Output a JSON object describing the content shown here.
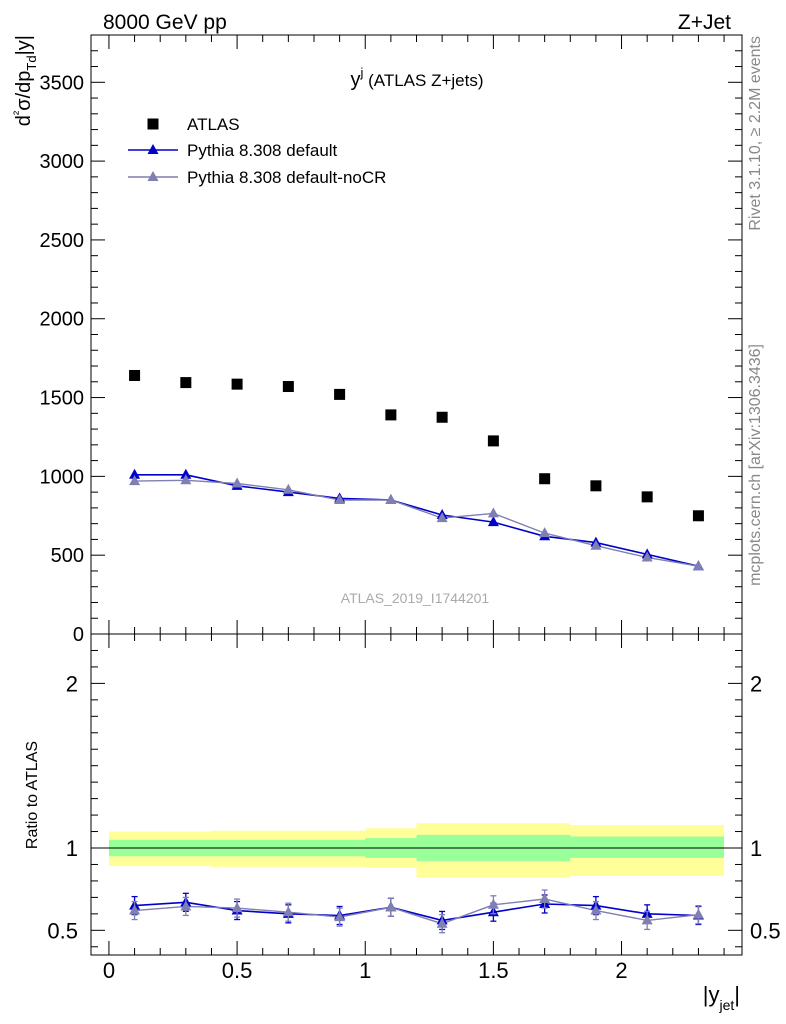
{
  "header": {
    "energy_label": "8000 GeV pp",
    "process_label": "Z+Jet"
  },
  "side_labels": {
    "rivet": "Rivet 3.1.10, ≥ 2.2M events",
    "mcplots": "mcplots.cern.ch [arXiv:1306.3436]"
  },
  "colors": {
    "atlas": "#000000",
    "default": "#0000cc",
    "noCR": "#7f7fb2",
    "band_inner": "#99ff99",
    "band_outer": "#ffff99"
  },
  "chart_data": [
    {
      "type": "scatter",
      "title": "y^j (ATLAS Z+jets)",
      "watermark": "ATLAS_2019_I1744201",
      "ylabel": "d²σ/dp_{Td}|y|",
      "xlim": [
        -0.07,
        2.47
      ],
      "ylim": [
        0,
        3800
      ],
      "yticks": [
        0,
        500,
        1000,
        1500,
        2000,
        2500,
        3000,
        3500
      ],
      "legend_placement": "top-left",
      "x": [
        0.1,
        0.3,
        0.5,
        0.7,
        0.9,
        1.1,
        1.3,
        1.5,
        1.7,
        1.9,
        2.1,
        2.3
      ],
      "series": [
        {
          "name": "ATLAS",
          "marker": "square",
          "values": [
            1640,
            1595,
            1585,
            1570,
            1520,
            1390,
            1375,
            1225,
            985,
            940,
            870,
            750
          ]
        },
        {
          "name": "Pythia 8.308 default",
          "marker": "triangle",
          "values": [
            1010,
            1010,
            940,
            900,
            860,
            850,
            755,
            710,
            620,
            580,
            505,
            430
          ]
        },
        {
          "name": "Pythia 8.308 default-noCR",
          "marker": "triangle",
          "values": [
            970,
            975,
            955,
            915,
            850,
            850,
            735,
            765,
            640,
            560,
            485,
            430
          ]
        }
      ]
    },
    {
      "type": "line",
      "ylabel": "Ratio to ATLAS",
      "xlabel": "|y_jet|",
      "xlim": [
        -0.07,
        2.47
      ],
      "ylim": [
        0.35,
        2.3
      ],
      "xticks": [
        0,
        0.5,
        1,
        1.5,
        2
      ],
      "xtick_labels": [
        "0",
        "0.5",
        "1",
        "1.5",
        "2"
      ],
      "yticks": [
        0.5,
        1,
        2
      ],
      "ytick_labels": [
        "0.5",
        "1",
        "2"
      ],
      "bin_edges": [
        0.0,
        0.4,
        1.0,
        1.2,
        1.8,
        2.4
      ],
      "band_inner": {
        "lo": [
          0.95,
          0.95,
          0.94,
          0.92,
          0.94,
          0.93
        ],
        "hi": [
          1.05,
          1.05,
          1.06,
          1.08,
          1.07,
          1.08
        ]
      },
      "band_outer": {
        "lo": [
          0.89,
          0.885,
          0.88,
          0.82,
          0.83,
          0.82
        ],
        "hi": [
          1.1,
          1.105,
          1.12,
          1.15,
          1.14,
          1.145
        ]
      },
      "x": [
        0.1,
        0.3,
        0.5,
        0.7,
        0.9,
        1.1,
        1.3,
        1.5,
        1.7,
        1.9,
        2.1,
        2.3
      ],
      "series": [
        {
          "name": "Pythia 8.308 default",
          "values": [
            0.65,
            0.67,
            0.62,
            0.6,
            0.59,
            0.64,
            0.56,
            0.61,
            0.66,
            0.65,
            0.6,
            0.59
          ]
        },
        {
          "name": "Pythia 8.308 default-noCR",
          "values": [
            0.62,
            0.645,
            0.635,
            0.61,
            0.58,
            0.64,
            0.54,
            0.655,
            0.69,
            0.62,
            0.56,
            0.595
          ]
        }
      ]
    }
  ]
}
